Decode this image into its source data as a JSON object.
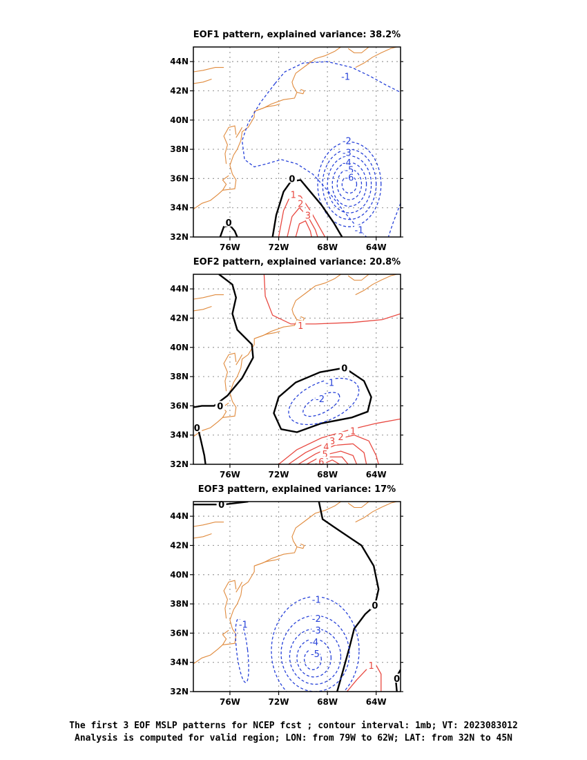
{
  "colors": {
    "coast": "#e08a3c",
    "positive": "#e8473f",
    "negative": "#2540d8",
    "zero": "#000000",
    "grid": "#9a9a9a"
  },
  "axes": {
    "lat_labels": [
      "32N",
      "34N",
      "36N",
      "38N",
      "40N",
      "42N",
      "44N"
    ],
    "lon_labels": [
      "76W",
      "72W",
      "68W",
      "64W"
    ]
  },
  "panels": [
    {
      "title": "EOF1 pattern, explained variance: 38.2%",
      "contour_labels": [
        {
          "text": "-1",
          "lon": -66.5,
          "lat": 43.0,
          "sign": "neg"
        },
        {
          "text": "-2",
          "lon": -66.4,
          "lat": 38.6,
          "sign": "neg"
        },
        {
          "text": "-3",
          "lon": -66.4,
          "lat": 37.8,
          "sign": "neg"
        },
        {
          "text": "-4",
          "lon": -66.4,
          "lat": 37.1,
          "sign": "neg"
        },
        {
          "text": "-5",
          "lon": -66.2,
          "lat": 36.6,
          "sign": "neg"
        },
        {
          "text": "-6",
          "lon": -66.2,
          "lat": 36.1,
          "sign": "neg"
        },
        {
          "text": "-1",
          "lon": -65.4,
          "lat": 32.5,
          "sign": "neg"
        },
        {
          "text": "0",
          "lon": -70.9,
          "lat": 36.0,
          "sign": "zero"
        },
        {
          "text": "0",
          "lon": -76.1,
          "lat": 33.0,
          "sign": "zero"
        },
        {
          "text": "1",
          "lon": -70.8,
          "lat": 34.9,
          "sign": "pos"
        },
        {
          "text": "2",
          "lon": -70.2,
          "lat": 34.3,
          "sign": "pos"
        },
        {
          "text": "3",
          "lon": -69.6,
          "lat": 33.5,
          "sign": "pos"
        }
      ]
    },
    {
      "title": "EOF2 pattern, explained variance: 20.8%",
      "contour_labels": [
        {
          "text": "1",
          "lon": -70.2,
          "lat": 41.5,
          "sign": "pos"
        },
        {
          "text": "0",
          "lon": -66.6,
          "lat": 38.6,
          "sign": "zero"
        },
        {
          "text": "0",
          "lon": -76.8,
          "lat": 36.0,
          "sign": "zero"
        },
        {
          "text": "0",
          "lon": -78.7,
          "lat": 34.5,
          "sign": "zero"
        },
        {
          "text": "-1",
          "lon": -67.8,
          "lat": 37.6,
          "sign": "neg"
        },
        {
          "text": "-2",
          "lon": -68.6,
          "lat": 36.5,
          "sign": "neg"
        },
        {
          "text": "1",
          "lon": -65.9,
          "lat": 34.3,
          "sign": "pos"
        },
        {
          "text": "2",
          "lon": -66.9,
          "lat": 33.9,
          "sign": "pos"
        },
        {
          "text": "3",
          "lon": -67.6,
          "lat": 33.6,
          "sign": "pos"
        },
        {
          "text": "4",
          "lon": -68.1,
          "lat": 33.2,
          "sign": "pos"
        },
        {
          "text": "5",
          "lon": -68.2,
          "lat": 32.7,
          "sign": "pos"
        },
        {
          "text": "6",
          "lon": -68.5,
          "lat": 32.2,
          "sign": "pos"
        }
      ]
    },
    {
      "title": "EOF3 pattern, explained variance: 17%",
      "contour_labels": [
        {
          "text": "0",
          "lon": -76.7,
          "lat": 44.8,
          "sign": "zero"
        },
        {
          "text": "0",
          "lon": -64.1,
          "lat": 37.9,
          "sign": "zero"
        },
        {
          "text": "0",
          "lon": -62.3,
          "lat": 32.9,
          "sign": "zero"
        },
        {
          "text": "-1",
          "lon": -74.9,
          "lat": 36.6,
          "sign": "neg"
        },
        {
          "text": "-1",
          "lon": -68.9,
          "lat": 38.3,
          "sign": "neg"
        },
        {
          "text": "-2",
          "lon": -68.9,
          "lat": 37.0,
          "sign": "neg"
        },
        {
          "text": "-3",
          "lon": -68.9,
          "lat": 36.2,
          "sign": "neg"
        },
        {
          "text": "-4",
          "lon": -69.1,
          "lat": 35.4,
          "sign": "neg"
        },
        {
          "text": "-5",
          "lon": -69.0,
          "lat": 34.6,
          "sign": "neg"
        },
        {
          "text": "1",
          "lon": -64.4,
          "lat": 33.8,
          "sign": "pos"
        }
      ]
    }
  ],
  "caption": {
    "line1": "The first 3 EOF MSLP patterns for NCEP fcst ; contour interval: 1mb; VT: 2023083012",
    "line2": "Analysis is computed for valid region; LON: from 79W to 62W; LAT: from 32N to 45N"
  }
}
